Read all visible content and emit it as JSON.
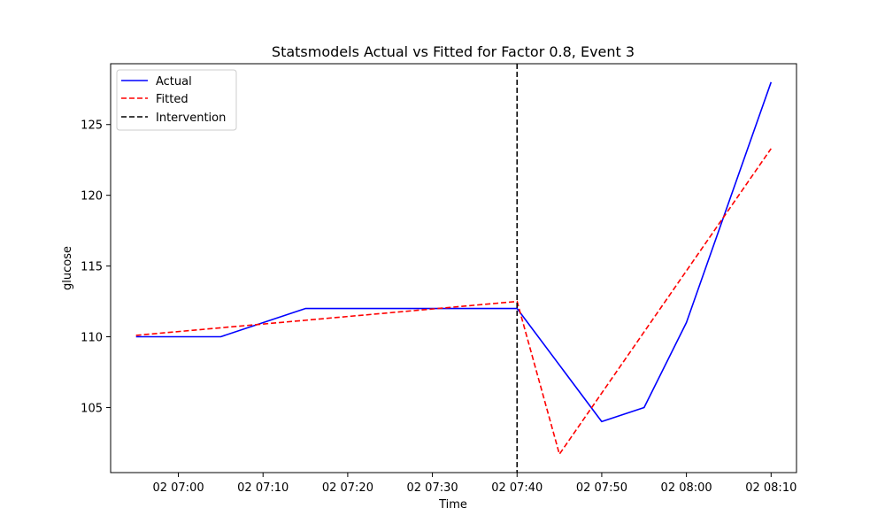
{
  "chart_data": {
    "type": "line",
    "title": "Statsmodels Actual vs Fitted for Factor 0.8, Event 3",
    "xlabel": "Time",
    "ylabel": "glucose",
    "x": [
      "02 06:55",
      "02 07:05",
      "02 07:15",
      "02 07:25",
      "02 07:35",
      "02 07:40",
      "02 07:45",
      "02 07:50",
      "02 07:55",
      "02 08:00",
      "02 08:10"
    ],
    "x_ticks": [
      "02 07:00",
      "02 07:10",
      "02 07:20",
      "02 07:30",
      "02 07:40",
      "02 07:50",
      "02 08:00",
      "02 08:10"
    ],
    "y_ticks": [
      105,
      110,
      115,
      120,
      125
    ],
    "xlim": [
      "02 06:52",
      "02 08:13"
    ],
    "ylim": [
      100.4,
      129.3
    ],
    "series": [
      {
        "name": "Actual",
        "color": "#0000ff",
        "style": "solid",
        "points": [
          [
            "02 06:55",
            110
          ],
          [
            "02 07:05",
            110
          ],
          [
            "02 07:15",
            112
          ],
          [
            "02 07:25",
            112
          ],
          [
            "02 07:35",
            112
          ],
          [
            "02 07:40",
            112
          ],
          [
            "02 07:50",
            104
          ],
          [
            "02 07:55",
            105
          ],
          [
            "02 08:00",
            111
          ],
          [
            "02 08:10",
            128
          ]
        ]
      },
      {
        "name": "Fitted",
        "color": "#ff0000",
        "style": "dashed",
        "points": [
          [
            "02 06:55",
            110.1
          ],
          [
            "02 07:40",
            112.5
          ],
          [
            "02 07:45",
            101.7
          ],
          [
            "02 08:10",
            123.3
          ]
        ]
      }
    ],
    "vlines": [
      {
        "name": "Intervention",
        "x": "02 07:40",
        "color": "#000000",
        "style": "dashed"
      }
    ],
    "legend": {
      "location": "upper-left",
      "entries": [
        "Actual",
        "Fitted",
        "Intervention"
      ]
    },
    "grid": false
  }
}
